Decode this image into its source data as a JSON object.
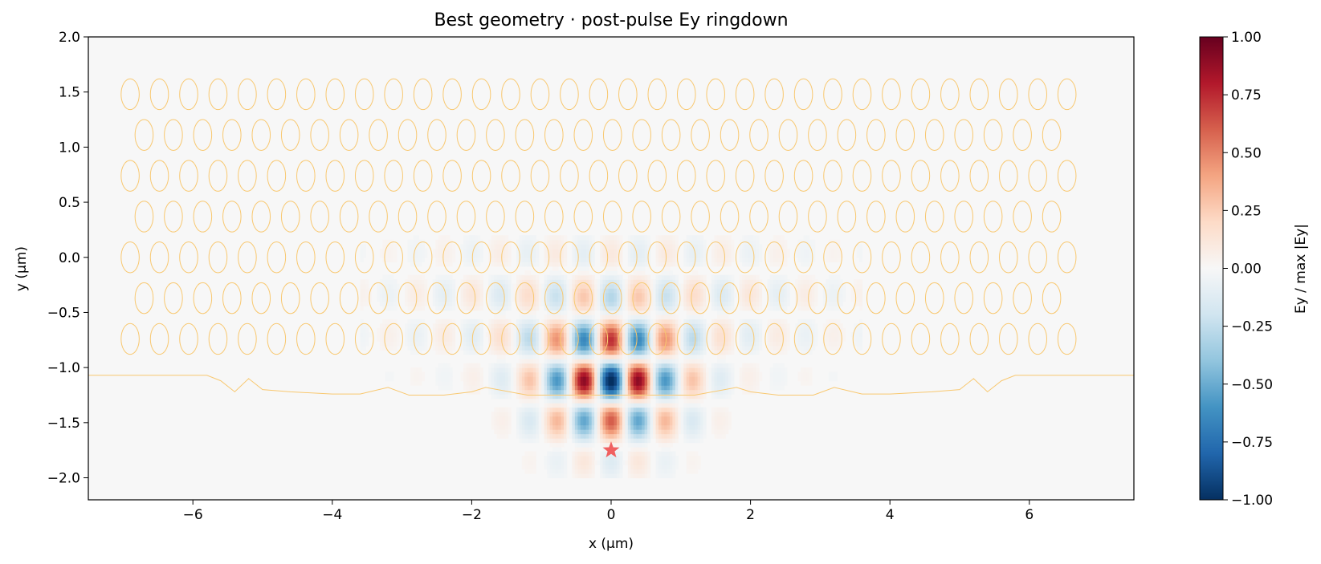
{
  "chart_data": {
    "type": "heatmap",
    "title": "Best geometry · post-pulse Ey ringdown",
    "xlabel": "x (µm)",
    "ylabel": "y (µm)",
    "xlim": [
      -7.5,
      7.5
    ],
    "ylim": [
      -2.2,
      2.0
    ],
    "x_ticks": [
      -6,
      -4,
      -2,
      0,
      2,
      4,
      6
    ],
    "x_tick_labels": [
      "−6",
      "−4",
      "−2",
      "0",
      "2",
      "4",
      "6"
    ],
    "y_ticks": [
      2.0,
      1.5,
      1.0,
      0.5,
      0.0,
      -0.5,
      -1.0,
      -1.5,
      -2.0
    ],
    "y_tick_labels": [
      "2.0",
      "1.5",
      "1.0",
      "0.5",
      "0.0",
      "−0.5",
      "−1.0",
      "−1.5",
      "−2.0"
    ],
    "colorbar": {
      "label": "Ey / max |Ey|",
      "range": [
        -1.0,
        1.0
      ],
      "ticks": [
        1.0,
        0.75,
        0.5,
        0.25,
        0.0,
        -0.25,
        -0.5,
        -0.75,
        -1.0
      ],
      "tick_labels": [
        "1.00",
        "0.75",
        "0.50",
        "0.25",
        "0.00",
        "−0.25",
        "−0.50",
        "−0.75",
        "−1.00"
      ],
      "colormap": "RdBu_r"
    },
    "source_marker": {
      "x": 0.0,
      "y": -1.75,
      "symbol": "star",
      "color": "#f06060"
    },
    "hole_lattice": {
      "rows_y": [
        1.48,
        1.11,
        0.74,
        0.37,
        0.0,
        -0.37,
        -0.74
      ],
      "pitch_x": 0.42,
      "even_row_x_range": [
        -6.9,
        6.9
      ],
      "odd_row_x_range": [
        -6.7,
        6.7
      ],
      "hole_rx": 0.13,
      "hole_ry": 0.14,
      "outline_color": "#f8c870"
    },
    "boundary_contour": {
      "points": [
        [
          -7.5,
          -1.07
        ],
        [
          -5.8,
          -1.07
        ],
        [
          -5.6,
          -1.12
        ],
        [
          -5.4,
          -1.22
        ],
        [
          -5.2,
          -1.1
        ],
        [
          -5.0,
          -1.2
        ],
        [
          -4.6,
          -1.22
        ],
        [
          -4.0,
          -1.24
        ],
        [
          -3.6,
          -1.24
        ],
        [
          -3.2,
          -1.18
        ],
        [
          -2.9,
          -1.25
        ],
        [
          -2.4,
          -1.25
        ],
        [
          -2.0,
          -1.22
        ],
        [
          -1.8,
          -1.18
        ],
        [
          -1.2,
          -1.25
        ],
        [
          0.0,
          -1.25
        ],
        [
          1.2,
          -1.25
        ],
        [
          1.8,
          -1.18
        ],
        [
          2.0,
          -1.22
        ],
        [
          2.4,
          -1.25
        ],
        [
          2.9,
          -1.25
        ],
        [
          3.2,
          -1.18
        ],
        [
          3.6,
          -1.24
        ],
        [
          4.0,
          -1.24
        ],
        [
          4.6,
          -1.22
        ],
        [
          5.0,
          -1.2
        ],
        [
          5.2,
          -1.1
        ],
        [
          5.4,
          -1.22
        ],
        [
          5.6,
          -1.12
        ],
        [
          5.8,
          -1.07
        ],
        [
          7.5,
          -1.07
        ]
      ],
      "color": "#f8c870"
    },
    "field_pattern": {
      "center": [
        0.0,
        -1.12
      ],
      "x_wavelength": 0.8,
      "y_wavelength": 0.8,
      "x_envelope_sigma": 0.7,
      "y_envelope_sigma": 0.38,
      "peak_value_at_center": -1.0
    }
  }
}
